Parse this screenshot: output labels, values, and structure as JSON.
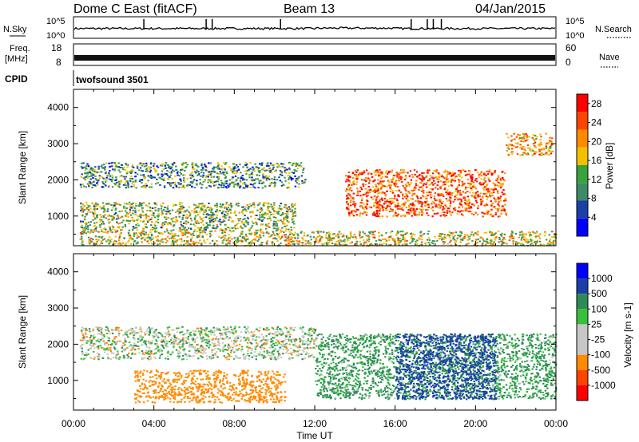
{
  "header": {
    "station": "Dome C East (fitACF)",
    "beam": "Beam 13",
    "date": "04/Jan/2015"
  },
  "strips": {
    "nsky_label": "N.Sky",
    "nsky_ticks": [
      "10^5",
      "10^0"
    ],
    "nsearch_label": "N.Search",
    "nsearch_ticks": [
      "10^5",
      "10^0"
    ],
    "freq_label_line1": "Freq.",
    "freq_label_line2": "[MHz]",
    "freq_ticks": [
      "18",
      "8"
    ],
    "nave_label": "Nave",
    "nave_ticks": [
      "60",
      "0"
    ],
    "cpid_label": "CPID",
    "cpid_value": "twofsound 3501"
  },
  "colors": {
    "power_scale": [
      "#0000ff",
      "#1a3fa8",
      "#3f8a66",
      "#37a33a",
      "#f2c000",
      "#ff8a00",
      "#ff4400",
      "#ff0000"
    ],
    "velocity_scale": [
      "#ff0000",
      "#ff4400",
      "#ff8a00",
      "#c7c7c7",
      "#c7c7c7",
      "#37c03a",
      "#2e8b57",
      "#1a3fa8",
      "#0000ff"
    ]
  },
  "chart_data": [
    {
      "type": "heatmap",
      "title": "",
      "xlabel": "Time UT",
      "ylabel": "Slant Range [km]",
      "x_ticks": [
        "00:00",
        "04:00",
        "08:00",
        "12:00",
        "16:00",
        "20:00",
        "00:00"
      ],
      "x_range_hours": [
        0,
        24
      ],
      "y_ticks": [
        1000,
        2000,
        3000,
        4000
      ],
      "ylim": [
        180,
        4500
      ],
      "colorbar": {
        "label": "Power [dB]",
        "ticks": [
          4,
          8,
          12,
          16,
          20,
          24,
          28
        ],
        "range": [
          0,
          30
        ]
      },
      "features": [
        {
          "t0": 0.3,
          "t1": 11.5,
          "r0": 1800,
          "r1": 2500,
          "level": 10
        },
        {
          "t0": 0.3,
          "t1": 11.0,
          "r0": 600,
          "r1": 1400,
          "level": 14
        },
        {
          "t0": 0.3,
          "t1": 24.0,
          "r0": 200,
          "r1": 600,
          "level": 16
        },
        {
          "t0": 13.5,
          "t1": 21.5,
          "r0": 1000,
          "r1": 2300,
          "level": 24
        },
        {
          "t0": 21.5,
          "t1": 23.8,
          "r0": 2700,
          "r1": 3300,
          "level": 20
        }
      ]
    },
    {
      "type": "heatmap",
      "title": "",
      "xlabel": "Time UT",
      "ylabel": "Slant Range [km]",
      "x_ticks": [
        "00:00",
        "04:00",
        "08:00",
        "12:00",
        "16:00",
        "20:00",
        "00:00"
      ],
      "x_range_hours": [
        0,
        24
      ],
      "y_ticks": [
        1000,
        2000,
        3000,
        4000
      ],
      "ylim": [
        180,
        4500
      ],
      "colorbar": {
        "label": "Velocity [m s-1]",
        "ticks": [
          1000,
          500,
          100,
          25,
          -25,
          -100,
          -500,
          -1000
        ]
      },
      "features": [
        {
          "t0": 0.3,
          "t1": 12.0,
          "r0": 1600,
          "r1": 2500,
          "velocity": 0
        },
        {
          "t0": 3.0,
          "t1": 10.5,
          "r0": 400,
          "r1": 1300,
          "velocity": -300
        },
        {
          "t0": 12.0,
          "t1": 24.0,
          "r0": 500,
          "r1": 2300,
          "velocity": 150
        },
        {
          "t0": 16.0,
          "t1": 21.0,
          "r0": 500,
          "r1": 2300,
          "velocity": 700
        }
      ]
    }
  ]
}
